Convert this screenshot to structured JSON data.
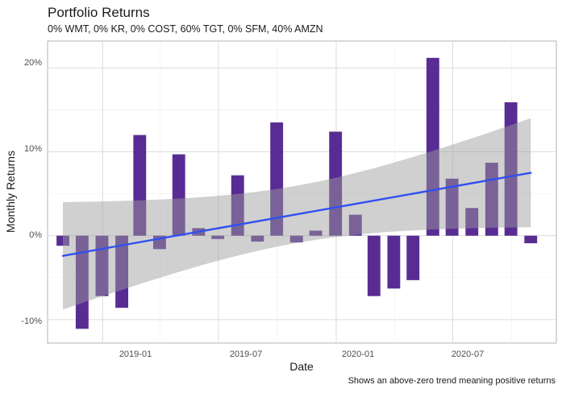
{
  "chart_data": {
    "type": "bar",
    "title": "Portfolio Returns",
    "subtitle": "0% WMT, 0% KR, 0% COST, 60% TGT, 0% SFM, 40% AMZN",
    "caption": "Shows an above-zero trend meaning positive returns",
    "xlabel": "Date",
    "ylabel": "Monthly Returns",
    "x_tick_labels": [
      "2019-01",
      "2019-07",
      "2020-01",
      "2020-07"
    ],
    "y_tick_labels": [
      "-10%",
      "0%",
      "10%",
      "20%"
    ],
    "ylim": [
      -0.128,
      0.232
    ],
    "grid": true,
    "bar_color": "#4b1a8a",
    "trend_color": "#3050f0",
    "band_color": "#9c9c9c",
    "series": [
      {
        "x": [
          "2018-10-31",
          "2018-11-30",
          "2018-12-31",
          "2019-01-31",
          "2019-02-28",
          "2019-03-31",
          "2019-04-30",
          "2019-05-31",
          "2019-06-30",
          "2019-07-31",
          "2019-08-31",
          "2019-09-30",
          "2019-10-31",
          "2019-11-30",
          "2019-12-31",
          "2020-01-31",
          "2020-02-29",
          "2020-03-31",
          "2020-04-30",
          "2020-05-31",
          "2020-06-30",
          "2020-07-31",
          "2020-08-31",
          "2020-09-30",
          "2020-10-31"
        ],
        "values": [
          -0.012,
          -0.111,
          -0.072,
          -0.086,
          0.12,
          -0.016,
          0.097,
          0.009,
          -0.004,
          0.072,
          -0.007,
          0.135,
          -0.008,
          0.006,
          0.124,
          0.025,
          -0.072,
          -0.063,
          -0.053,
          0.212,
          0.068,
          0.033,
          0.087,
          0.159,
          -0.009
        ]
      }
    ],
    "trend": {
      "x": [
        "2018-10-31",
        "2020-10-31"
      ],
      "y": [
        -0.024,
        0.075
      ],
      "band_lower": [
        -0.088,
        0.01
      ],
      "band_upper": [
        0.04,
        0.14
      ]
    }
  }
}
